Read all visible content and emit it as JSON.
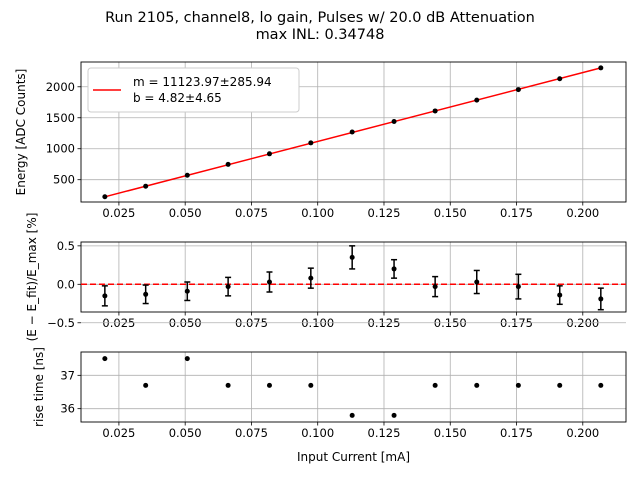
{
  "figure": {
    "title_line1": "Run 2105, channel8, lo gain, Pulses w/ 20.0 dB Attenuation",
    "title_line2": "max INL: 0.34748"
  },
  "chart_data": [
    {
      "type": "line",
      "title": "",
      "xlabel": "",
      "ylabel": "Energy [ADC Counts]",
      "xlim": [
        0.0107,
        0.2163
      ],
      "ylim": [
        140,
        2400
      ],
      "grid": true,
      "x_ticks": [
        "0.025",
        "0.050",
        "0.075",
        "0.100",
        "0.125",
        "0.150",
        "0.175",
        "0.200"
      ],
      "y_ticks": [
        "500",
        "1000",
        "1500",
        "2000"
      ],
      "legend": {
        "placement": "top-left",
        "line1": "m = 11123.97±285.94",
        "line2": "b = 4.82±4.65"
      },
      "series": [
        {
          "name": "fit",
          "color": "#ff0000",
          "slope": 11123.97,
          "intercept": 4.82
        },
        {
          "color": "#000000",
          "x": [
            0.0197,
            0.0351,
            0.0508,
            0.0662,
            0.0818,
            0.0974,
            0.113,
            0.1288,
            0.1443,
            0.16,
            0.1757,
            0.1913,
            0.2068
          ],
          "y": [
            225,
            395,
            572,
            748,
            918,
            1095,
            1270,
            1440,
            1610,
            1785,
            1955,
            2130,
            2305
          ]
        }
      ]
    },
    {
      "type": "scatter",
      "title": "",
      "xlabel": "",
      "ylabel": "(E − E_fit)/E_max [%]",
      "xlim": [
        0.0107,
        0.2163
      ],
      "ylim": [
        -0.36,
        0.55
      ],
      "grid": true,
      "x_ticks": [
        "0.025",
        "0.050",
        "0.075",
        "0.100",
        "0.125",
        "0.150",
        "0.175",
        "0.200"
      ],
      "y_ticks": [
        "−0.5",
        "0.0",
        "0.5"
      ],
      "reference_line": {
        "y": 0.0,
        "color": "#ff0000",
        "style": "dashed"
      },
      "series": [
        {
          "color": "#000000",
          "x": [
            0.0197,
            0.0351,
            0.0508,
            0.0662,
            0.0818,
            0.0974,
            0.113,
            0.1288,
            0.1443,
            0.16,
            0.1757,
            0.1913,
            0.2068
          ],
          "y": [
            -0.15,
            -0.13,
            -0.09,
            -0.03,
            0.03,
            0.08,
            0.35,
            0.2,
            -0.03,
            0.03,
            -0.03,
            -0.14,
            -0.19
          ],
          "yerr": [
            0.13,
            0.12,
            0.12,
            0.12,
            0.13,
            0.13,
            0.15,
            0.12,
            0.13,
            0.15,
            0.16,
            0.12,
            0.14
          ]
        }
      ]
    },
    {
      "type": "scatter",
      "title": "",
      "xlabel": "Input Current [mA]",
      "ylabel": "rise time [ns]",
      "xlim": [
        0.0107,
        0.2163
      ],
      "ylim": [
        35.6,
        37.7
      ],
      "grid": true,
      "x_ticks": [
        "0.025",
        "0.050",
        "0.075",
        "0.100",
        "0.125",
        "0.150",
        "0.175",
        "0.200"
      ],
      "y_ticks": [
        "36",
        "37"
      ],
      "series": [
        {
          "color": "#000000",
          "x": [
            0.0197,
            0.0351,
            0.0508,
            0.0662,
            0.0818,
            0.0974,
            0.113,
            0.1288,
            0.1443,
            0.16,
            0.1757,
            0.1913,
            0.2068
          ],
          "y": [
            37.5,
            36.7,
            37.5,
            36.7,
            36.7,
            36.7,
            35.8,
            35.8,
            36.7,
            36.7,
            36.7,
            36.7,
            36.7
          ]
        }
      ]
    }
  ]
}
